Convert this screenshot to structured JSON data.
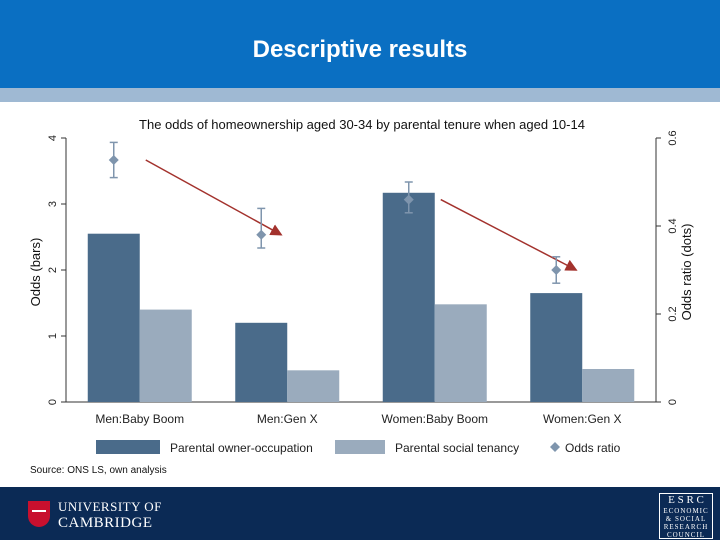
{
  "slide": {
    "title": "Descriptive results"
  },
  "chart_data": {
    "type": "bar",
    "title": "The odds of homeownership aged 30-34 by parental tenure when aged 10-14",
    "categories": [
      "Men:Baby Boom",
      "Men:Gen X",
      "Women:Baby Boom",
      "Women:Gen X"
    ],
    "series": [
      {
        "name": "Parental owner-occupation",
        "values": [
          2.55,
          1.2,
          3.17,
          1.65
        ],
        "color": "#4a6b8a"
      },
      {
        "name": "Parental social tenancy",
        "values": [
          1.4,
          0.48,
          1.48,
          0.5
        ],
        "color": "#9aabbd"
      }
    ],
    "odds_ratio": {
      "name": "Odds ratio",
      "values": [
        0.55,
        0.38,
        0.46,
        0.3
      ],
      "ci_low": [
        0.51,
        0.35,
        0.43,
        0.27
      ],
      "ci_high": [
        0.59,
        0.44,
        0.5,
        0.33
      ],
      "color": "#7f95ad",
      "arrow_color": "#a3322d"
    },
    "ylabel": "Odds (bars)",
    "ylim": [
      0,
      4
    ],
    "yticks": [
      0,
      1,
      2,
      3,
      4
    ],
    "y2label": "Odds ratio (dots)",
    "y2lim": [
      0,
      0.6
    ],
    "y2ticks": [
      0,
      0.2,
      0.4,
      0.6
    ],
    "legend_position": "bottom",
    "source": "Source: ONS LS, own analysis"
  },
  "footer": {
    "university_line1": "UNIVERSITY OF",
    "university_line2": "CAMBRIDGE",
    "esrc_abbr": "E S R C",
    "esrc_line1": "ECONOMIC",
    "esrc_line2": "& SOCIAL",
    "esrc_line3": "RESEARCH",
    "esrc_line4": "COUNCIL"
  }
}
